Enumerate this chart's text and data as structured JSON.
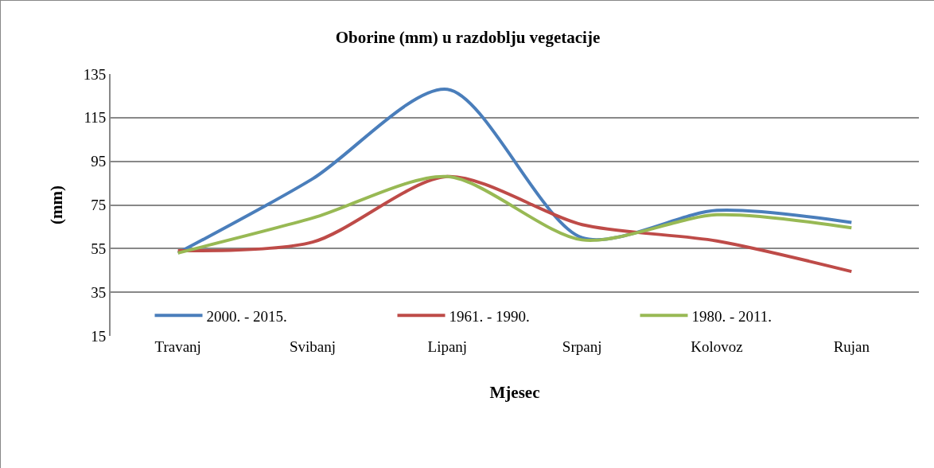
{
  "chart_data": {
    "type": "line",
    "title": "Oborine (mm) u razdoblju vegetacije",
    "xlabel": "Mjesec",
    "ylabel": "(mm)",
    "categories": [
      "Travanj",
      "Svibanj",
      "Lipanj",
      "Srpanj",
      "Kolovoz",
      "Rujan"
    ],
    "series": [
      {
        "name": "2000. - 2015.",
        "color": "#4a7ebb",
        "values": [
          53,
          87,
          128,
          60,
          72.5,
          67
        ]
      },
      {
        "name": "1961. - 1990.",
        "color": "#be4b48",
        "values": [
          54,
          58,
          88,
          66,
          58.5,
          44.5
        ]
      },
      {
        "name": "1980. - 2011.",
        "color": "#98b954",
        "values": [
          53,
          69,
          88,
          59,
          70.5,
          64.5
        ]
      }
    ],
    "ylim": [
      15,
      135
    ],
    "yticks": [
      15,
      35,
      55,
      75,
      95,
      115,
      135
    ],
    "grid": "y",
    "legend": "bottom",
    "marker": "none",
    "line_style": "solid"
  }
}
